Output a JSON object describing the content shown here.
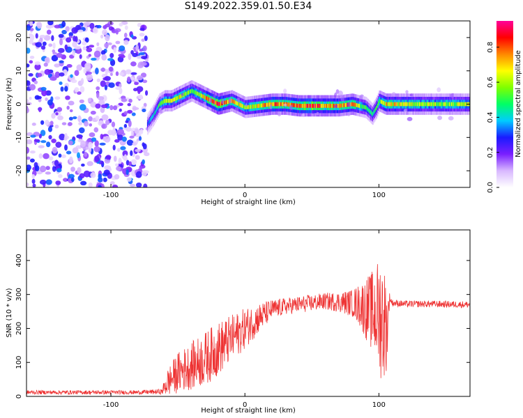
{
  "title": "S149.2022.359.01.50.E34",
  "chart_data": [
    {
      "type": "heatmap",
      "xlabel": "Height of straight line (km)",
      "ylabel": "Frequency (Hz)",
      "xlim": [
        -163,
        168
      ],
      "ylim": [
        -25,
        25
      ],
      "xticks": [
        -100,
        0,
        100
      ],
      "yticks": [
        -20,
        -10,
        0,
        10,
        20
      ],
      "colorbar": {
        "label": "Normalized spectral amplitude",
        "range": [
          0,
          0.95
        ],
        "ticks": [
          "0.0",
          "0.2",
          "0.4",
          "0.6",
          "0.8"
        ],
        "tick_values": [
          0,
          0.2,
          0.4,
          0.6,
          0.8
        ],
        "colors": [
          "#ffffff",
          "#d8b8ff",
          "#7a1fff",
          "#1a1aff",
          "#00ccff",
          "#00ff66",
          "#7fff00",
          "#ffff00",
          "#ff8800",
          "#ff0000",
          "#ff0099"
        ]
      },
      "noise_region_x": [
        -163,
        -73
      ],
      "ridge": {
        "x": [
          -73,
          -68,
          -64,
          -60,
          -55,
          -50,
          -45,
          -40,
          -35,
          -30,
          -25,
          -20,
          -15,
          -10,
          -5,
          0,
          10,
          20,
          30,
          40,
          50,
          60,
          70,
          80,
          85,
          90,
          95,
          98,
          100,
          105,
          120,
          140,
          168
        ],
        "y": [
          -6,
          -3,
          0,
          1,
          1,
          2,
          3,
          4,
          3,
          2,
          1,
          0,
          0.5,
          1,
          0,
          -1,
          -0.5,
          0,
          0,
          -0.5,
          -0.5,
          -0.5,
          -0.5,
          0,
          -0.5,
          -1,
          -3,
          -1,
          1,
          0,
          0,
          0,
          0
        ],
        "amplitude": [
          0.3,
          0.4,
          0.5,
          0.6,
          0.6,
          0.65,
          0.6,
          0.55,
          0.6,
          0.7,
          0.8,
          0.9,
          0.75,
          0.7,
          0.65,
          0.6,
          0.7,
          0.8,
          0.75,
          0.8,
          0.85,
          0.75,
          0.75,
          0.8,
          0.6,
          0.5,
          0.45,
          0.5,
          0.6,
          0.7,
          0.65,
          0.6,
          0.6
        ]
      }
    },
    {
      "type": "line",
      "xlabel": "Height of straight line (km)",
      "ylabel": "SNR (10 * v/v)",
      "xlim": [
        -163,
        168
      ],
      "ylim": [
        0,
        490
      ],
      "xticks": [
        -100,
        0,
        100
      ],
      "yticks": [
        0,
        100,
        200,
        300,
        400
      ],
      "color": "#ee3333",
      "envelope": {
        "x": [
          -163,
          -140,
          -120,
          -100,
          -80,
          -62,
          -58,
          -50,
          -40,
          -30,
          -20,
          -10,
          0,
          10,
          20,
          30,
          40,
          50,
          60,
          70,
          80,
          85,
          90,
          95,
          100,
          103,
          106,
          108,
          110,
          120,
          140,
          168
        ],
        "mean": [
          12,
          12,
          12,
          12,
          12,
          14,
          40,
          70,
          90,
          110,
          140,
          170,
          200,
          230,
          255,
          265,
          270,
          275,
          280,
          278,
          275,
          270,
          260,
          250,
          240,
          230,
          200,
          290,
          275,
          272,
          272,
          270
        ],
        "amplitude": [
          6,
          6,
          6,
          6,
          6,
          8,
          40,
          60,
          70,
          80,
          80,
          70,
          60,
          45,
          30,
          25,
          25,
          25,
          25,
          30,
          40,
          60,
          90,
          120,
          170,
          200,
          120,
          15,
          10,
          10,
          10,
          10
        ]
      }
    }
  ]
}
